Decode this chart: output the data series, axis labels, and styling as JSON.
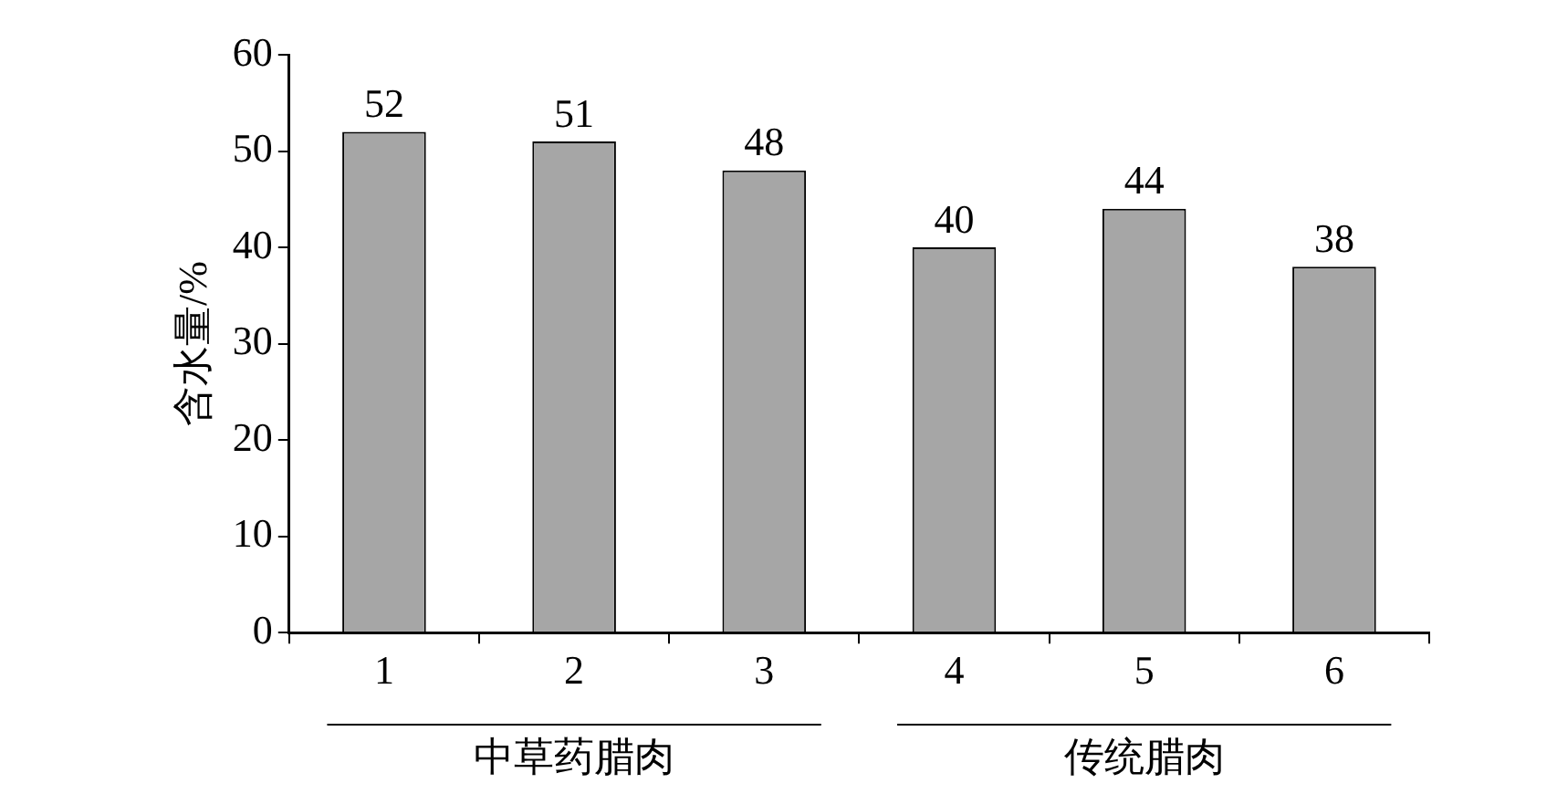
{
  "chart_data": {
    "type": "bar",
    "ylabel": "含水量/%",
    "categories": [
      "1",
      "2",
      "3",
      "4",
      "5",
      "6"
    ],
    "values": [
      52,
      51,
      48,
      40,
      44,
      38
    ],
    "color": "#a6a6a6",
    "ylim": [
      0,
      60
    ],
    "yticks": [
      0,
      10,
      20,
      30,
      40,
      50,
      60
    ],
    "grid": false,
    "legend": false,
    "data_labels": true,
    "annotations": [
      "中草药腊肉",
      "传统腊肉"
    ]
  }
}
